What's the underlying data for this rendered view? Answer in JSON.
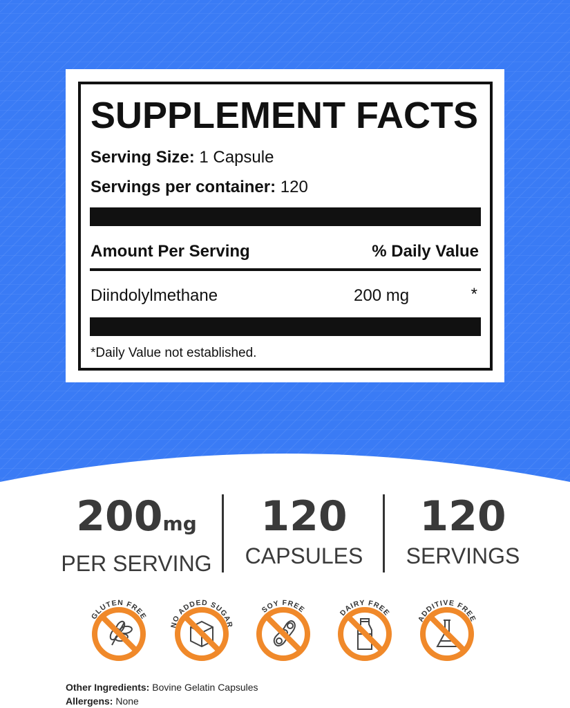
{
  "facts": {
    "title": "SUPPLEMENT FACTS",
    "serving_size_label": "Serving Size:",
    "serving_size": "1 Capsule",
    "servings_label": "Servings per container:",
    "servings": "120",
    "amount_header": "Amount Per Serving",
    "dv_header": "% Daily Value",
    "ingredient": "Diindolylmethane",
    "amount": "200 mg",
    "dv": "*",
    "footnote": "*Daily Value not established."
  },
  "stats": [
    {
      "value": "200",
      "unit": "mg",
      "label": "PER SERVING"
    },
    {
      "value": "120",
      "label": "CAPSULES"
    },
    {
      "value": "120",
      "label": "SERVINGS"
    }
  ],
  "badges": [
    {
      "label": "GLUTEN FREE",
      "icon": "wheat-icon"
    },
    {
      "label": "NO ADDED SUGAR",
      "icon": "sugar-cube-icon"
    },
    {
      "label": "SOY FREE",
      "icon": "soybean-icon"
    },
    {
      "label": "DAIRY FREE",
      "icon": "milk-bottle-icon"
    },
    {
      "label": "ADDITIVE FREE",
      "icon": "flask-icon"
    }
  ],
  "footer": {
    "ingredients_label": "Other Ingredients:",
    "ingredients": "Bovine Gelatin Capsules",
    "allergens_label": "Allergens:",
    "allergens": "None"
  },
  "colors": {
    "background_blue": "#3a7bf5",
    "badge_orange": "#f0892a",
    "text_dark": "#3a3a3a"
  }
}
